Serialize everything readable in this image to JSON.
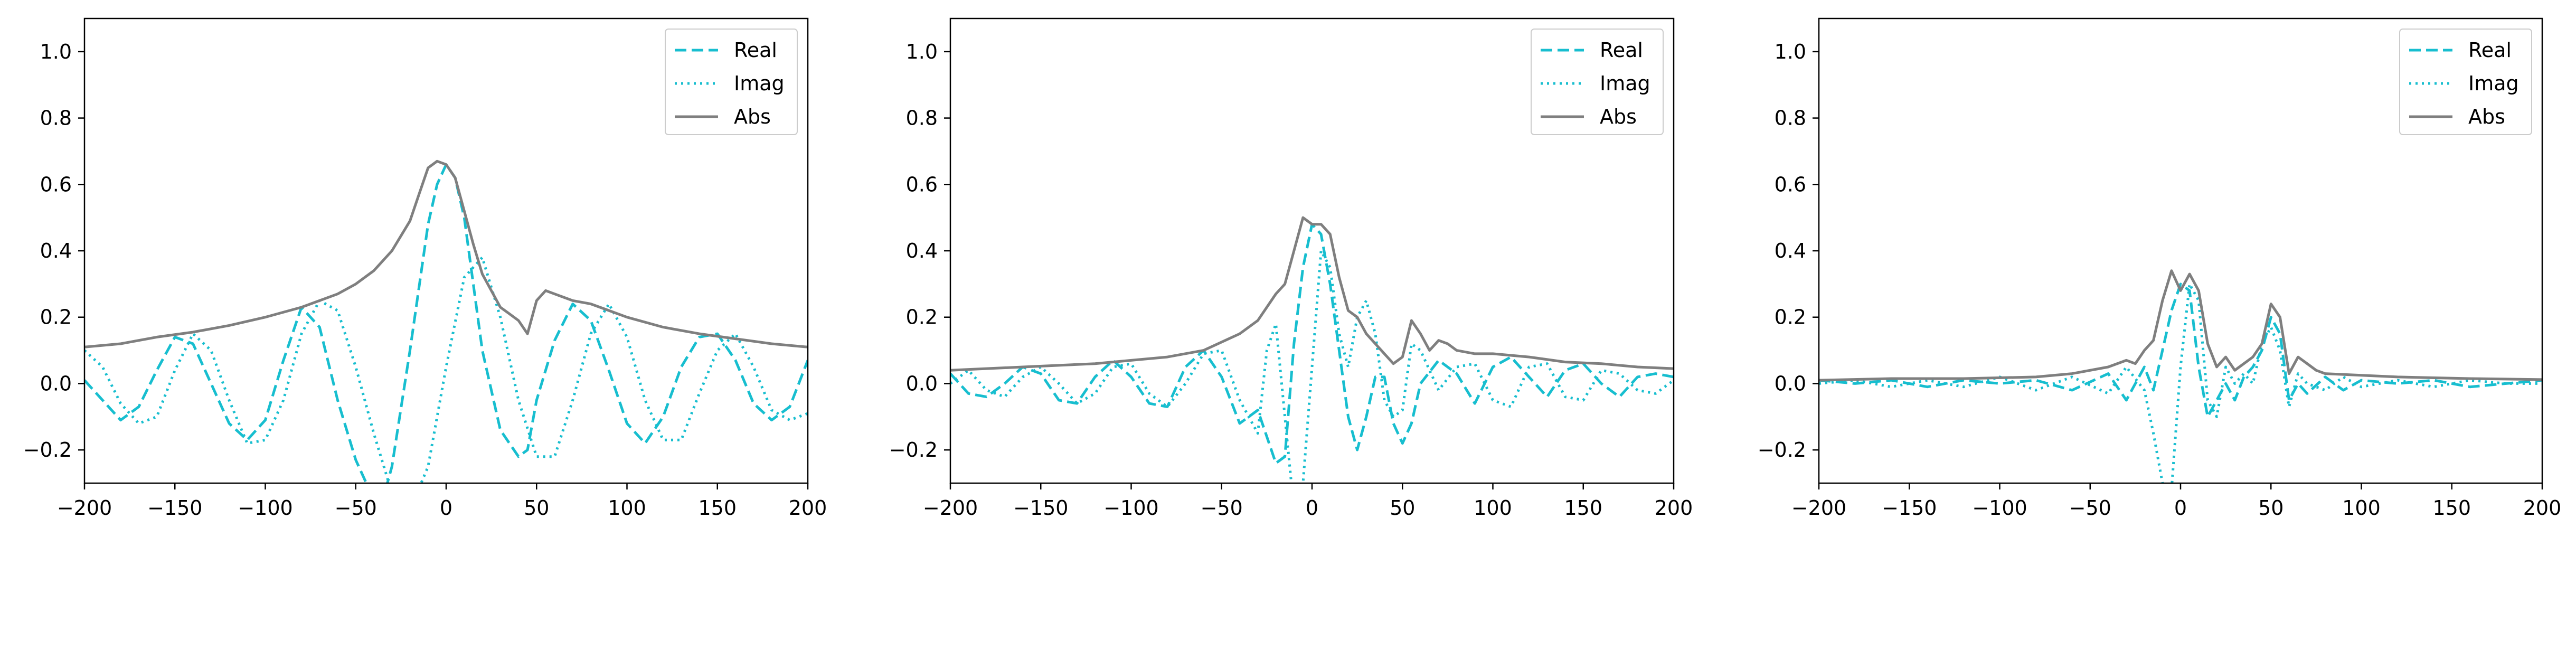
{
  "chart_data": [
    {
      "type": "line",
      "xlim": [
        -200,
        200
      ],
      "ylim": [
        -0.3,
        1.1
      ],
      "xticks": [
        "-200",
        "-150",
        "-100",
        "-50",
        "0",
        "50",
        "100",
        "150",
        "200"
      ],
      "yticks": [
        "-0.2",
        "0.0",
        "0.2",
        "0.4",
        "0.6",
        "0.8",
        "1.0"
      ],
      "grid": false,
      "legend_position": "top-right",
      "series": [
        {
          "name": "Real",
          "color": "#17becf",
          "style": "dashed",
          "x": [
            -200,
            -190,
            -180,
            -170,
            -160,
            -150,
            -140,
            -130,
            -120,
            -110,
            -100,
            -90,
            -80,
            -70,
            -60,
            -50,
            -40,
            -35,
            -30,
            -20,
            -10,
            -5,
            0,
            5,
            10,
            20,
            30,
            40,
            45,
            50,
            60,
            70,
            80,
            90,
            100,
            110,
            120,
            130,
            140,
            150,
            160,
            170,
            180,
            190,
            200
          ],
          "y": [
            0.01,
            -0.05,
            -0.11,
            -0.07,
            0.04,
            0.14,
            0.12,
            0.0,
            -0.12,
            -0.17,
            -0.11,
            0.07,
            0.23,
            0.17,
            -0.05,
            -0.23,
            -0.35,
            -0.35,
            -0.25,
            0.1,
            0.48,
            0.6,
            0.66,
            0.62,
            0.5,
            0.1,
            -0.14,
            -0.22,
            -0.2,
            -0.05,
            0.13,
            0.24,
            0.19,
            0.04,
            -0.12,
            -0.18,
            -0.1,
            0.05,
            0.14,
            0.15,
            0.07,
            -0.06,
            -0.11,
            -0.07,
            0.07
          ]
        },
        {
          "name": "Imag",
          "color": "#17becf",
          "style": "dotted",
          "x": [
            -200,
            -190,
            -180,
            -170,
            -160,
            -150,
            -140,
            -130,
            -120,
            -110,
            -100,
            -90,
            -80,
            -70,
            -60,
            -50,
            -40,
            -30,
            -20,
            -10,
            0,
            10,
            20,
            30,
            40,
            50,
            60,
            70,
            80,
            90,
            100,
            110,
            120,
            130,
            140,
            150,
            160,
            170,
            180,
            190,
            200
          ],
          "y": [
            0.1,
            0.05,
            -0.06,
            -0.12,
            -0.1,
            0.04,
            0.15,
            0.1,
            -0.05,
            -0.18,
            -0.17,
            -0.05,
            0.15,
            0.25,
            0.22,
            0.05,
            -0.15,
            -0.33,
            -0.38,
            -0.25,
            0.05,
            0.32,
            0.38,
            0.2,
            -0.05,
            -0.22,
            -0.22,
            -0.05,
            0.15,
            0.24,
            0.14,
            -0.05,
            -0.17,
            -0.17,
            -0.03,
            0.1,
            0.15,
            0.05,
            -0.08,
            -0.11,
            -0.09
          ]
        },
        {
          "name": "Abs",
          "color": "#7f7f7f",
          "style": "solid",
          "x": [
            -200,
            -180,
            -160,
            -140,
            -120,
            -100,
            -80,
            -60,
            -50,
            -40,
            -30,
            -20,
            -15,
            -10,
            -5,
            0,
            5,
            10,
            15,
            20,
            25,
            30,
            35,
            40,
            45,
            50,
            55,
            60,
            65,
            70,
            80,
            90,
            100,
            120,
            140,
            160,
            180,
            200
          ],
          "y": [
            0.11,
            0.12,
            0.14,
            0.155,
            0.175,
            0.2,
            0.23,
            0.27,
            0.3,
            0.34,
            0.4,
            0.49,
            0.57,
            0.65,
            0.67,
            0.66,
            0.62,
            0.52,
            0.42,
            0.33,
            0.28,
            0.23,
            0.21,
            0.19,
            0.15,
            0.25,
            0.28,
            0.27,
            0.26,
            0.25,
            0.24,
            0.22,
            0.2,
            0.17,
            0.15,
            0.135,
            0.12,
            0.11
          ]
        }
      ]
    },
    {
      "type": "line",
      "xlim": [
        -200,
        200
      ],
      "ylim": [
        -0.3,
        1.1
      ],
      "xticks": [
        "-200",
        "-150",
        "-100",
        "-50",
        "0",
        "50",
        "100",
        "150",
        "200"
      ],
      "yticks": [
        "-0.2",
        "0.0",
        "0.2",
        "0.4",
        "0.6",
        "0.8",
        "1.0"
      ],
      "grid": false,
      "legend_position": "top-right",
      "series": [
        {
          "name": "Real",
          "color": "#17becf",
          "style": "dashed",
          "x": [
            -200,
            -190,
            -180,
            -170,
            -160,
            -150,
            -140,
            -130,
            -120,
            -110,
            -100,
            -90,
            -80,
            -70,
            -60,
            -50,
            -40,
            -30,
            -20,
            -15,
            -10,
            -5,
            0,
            5,
            10,
            15,
            20,
            25,
            30,
            35,
            40,
            45,
            50,
            55,
            60,
            70,
            80,
            90,
            100,
            110,
            120,
            130,
            140,
            150,
            160,
            170,
            180,
            190,
            200
          ],
          "y": [
            0.03,
            -0.03,
            -0.04,
            0.0,
            0.05,
            0.03,
            -0.05,
            -0.06,
            0.02,
            0.07,
            0.02,
            -0.06,
            -0.07,
            0.05,
            0.1,
            0.02,
            -0.12,
            -0.08,
            -0.24,
            -0.22,
            0.12,
            0.35,
            0.48,
            0.45,
            0.3,
            0.1,
            -0.1,
            -0.2,
            -0.1,
            0.02,
            0.02,
            -0.12,
            -0.18,
            -0.12,
            0.0,
            0.07,
            0.03,
            -0.06,
            0.05,
            0.08,
            0.02,
            -0.04,
            0.04,
            0.06,
            0.0,
            -0.04,
            0.02,
            0.03,
            0.02
          ]
        },
        {
          "name": "Imag",
          "color": "#17becf",
          "style": "dotted",
          "x": [
            -200,
            -190,
            -180,
            -170,
            -160,
            -150,
            -140,
            -130,
            -120,
            -110,
            -100,
            -90,
            -80,
            -70,
            -60,
            -50,
            -40,
            -30,
            -25,
            -20,
            -15,
            -10,
            -5,
            0,
            5,
            10,
            15,
            20,
            25,
            30,
            35,
            40,
            45,
            50,
            55,
            60,
            70,
            80,
            90,
            100,
            110,
            120,
            130,
            140,
            150,
            160,
            170,
            180,
            190,
            200
          ],
          "y": [
            0.0,
            0.04,
            -0.02,
            -0.04,
            0.02,
            0.05,
            0.0,
            -0.06,
            -0.03,
            0.05,
            0.06,
            -0.03,
            -0.07,
            0.0,
            0.09,
            0.1,
            -0.05,
            -0.15,
            0.1,
            0.18,
            -0.1,
            -0.38,
            -0.3,
            0.05,
            0.4,
            0.35,
            0.15,
            0.05,
            0.2,
            0.25,
            0.15,
            -0.05,
            -0.1,
            -0.08,
            0.12,
            0.1,
            -0.02,
            0.05,
            0.06,
            -0.05,
            -0.07,
            0.05,
            0.06,
            -0.04,
            -0.05,
            0.04,
            0.03,
            -0.02,
            -0.03,
            0.01
          ]
        },
        {
          "name": "Abs",
          "color": "#7f7f7f",
          "style": "solid",
          "x": [
            -200,
            -160,
            -120,
            -80,
            -60,
            -40,
            -30,
            -20,
            -15,
            -10,
            -5,
            0,
            5,
            10,
            15,
            20,
            25,
            30,
            35,
            40,
            45,
            50,
            55,
            60,
            65,
            70,
            75,
            80,
            90,
            100,
            120,
            140,
            160,
            180,
            200
          ],
          "y": [
            0.04,
            0.05,
            0.06,
            0.08,
            0.1,
            0.15,
            0.19,
            0.27,
            0.3,
            0.4,
            0.5,
            0.48,
            0.48,
            0.45,
            0.32,
            0.22,
            0.2,
            0.15,
            0.12,
            0.09,
            0.06,
            0.08,
            0.19,
            0.15,
            0.1,
            0.13,
            0.12,
            0.1,
            0.09,
            0.09,
            0.08,
            0.065,
            0.06,
            0.05,
            0.045
          ]
        }
      ]
    },
    {
      "type": "line",
      "xlim": [
        -200,
        200
      ],
      "ylim": [
        -0.3,
        1.1
      ],
      "xticks": [
        "-200",
        "-150",
        "-100",
        "-50",
        "0",
        "50",
        "100",
        "150",
        "200"
      ],
      "yticks": [
        "-0.2",
        "0.0",
        "0.2",
        "0.4",
        "0.6",
        "0.8",
        "1.0"
      ],
      "grid": false,
      "legend_position": "top-right",
      "series": [
        {
          "name": "Real",
          "color": "#17becf",
          "style": "dashed",
          "x": [
            -200,
            -180,
            -160,
            -140,
            -120,
            -100,
            -80,
            -60,
            -40,
            -30,
            -20,
            -15,
            -10,
            -5,
            0,
            5,
            10,
            15,
            20,
            25,
            30,
            35,
            40,
            45,
            50,
            55,
            60,
            65,
            70,
            80,
            90,
            100,
            120,
            140,
            160,
            180,
            200
          ],
          "y": [
            0.01,
            0.0,
            0.01,
            -0.01,
            0.01,
            0.0,
            0.01,
            -0.02,
            0.03,
            -0.05,
            0.05,
            -0.02,
            0.1,
            0.22,
            0.3,
            0.28,
            0.05,
            -0.1,
            -0.05,
            0.0,
            -0.05,
            0.02,
            0.05,
            0.1,
            0.2,
            0.15,
            -0.05,
            0.0,
            -0.03,
            0.02,
            -0.02,
            0.01,
            0.0,
            0.01,
            -0.01,
            0.0,
            0.01
          ]
        },
        {
          "name": "Imag",
          "color": "#17becf",
          "style": "dotted",
          "x": [
            -200,
            -180,
            -160,
            -140,
            -120,
            -100,
            -80,
            -60,
            -40,
            -30,
            -20,
            -15,
            -10,
            -5,
            0,
            5,
            10,
            15,
            20,
            25,
            30,
            35,
            40,
            45,
            50,
            55,
            60,
            65,
            70,
            80,
            90,
            100,
            120,
            140,
            160,
            180,
            200
          ],
          "y": [
            0.0,
            0.01,
            -0.01,
            0.01,
            -0.01,
            0.02,
            -0.02,
            0.02,
            -0.03,
            0.05,
            -0.02,
            -0.15,
            -0.3,
            -0.32,
            0.05,
            0.3,
            0.25,
            -0.05,
            -0.1,
            0.05,
            0.0,
            0.03,
            0.0,
            0.12,
            0.17,
            0.1,
            -0.07,
            0.03,
            0.0,
            -0.02,
            0.02,
            -0.01,
            0.01,
            -0.01,
            0.01,
            0.0,
            0.0
          ]
        },
        {
          "name": "Abs",
          "color": "#7f7f7f",
          "style": "solid",
          "x": [
            -200,
            -160,
            -120,
            -80,
            -60,
            -40,
            -30,
            -25,
            -20,
            -15,
            -10,
            -5,
            0,
            5,
            10,
            15,
            20,
            25,
            30,
            35,
            40,
            45,
            50,
            55,
            60,
            65,
            70,
            75,
            80,
            100,
            120,
            160,
            200
          ],
          "y": [
            0.01,
            0.015,
            0.015,
            0.02,
            0.03,
            0.05,
            0.07,
            0.06,
            0.1,
            0.13,
            0.25,
            0.34,
            0.28,
            0.33,
            0.28,
            0.12,
            0.05,
            0.08,
            0.04,
            0.06,
            0.08,
            0.12,
            0.24,
            0.2,
            0.03,
            0.08,
            0.06,
            0.04,
            0.03,
            0.025,
            0.02,
            0.015,
            0.012
          ]
        }
      ]
    }
  ]
}
